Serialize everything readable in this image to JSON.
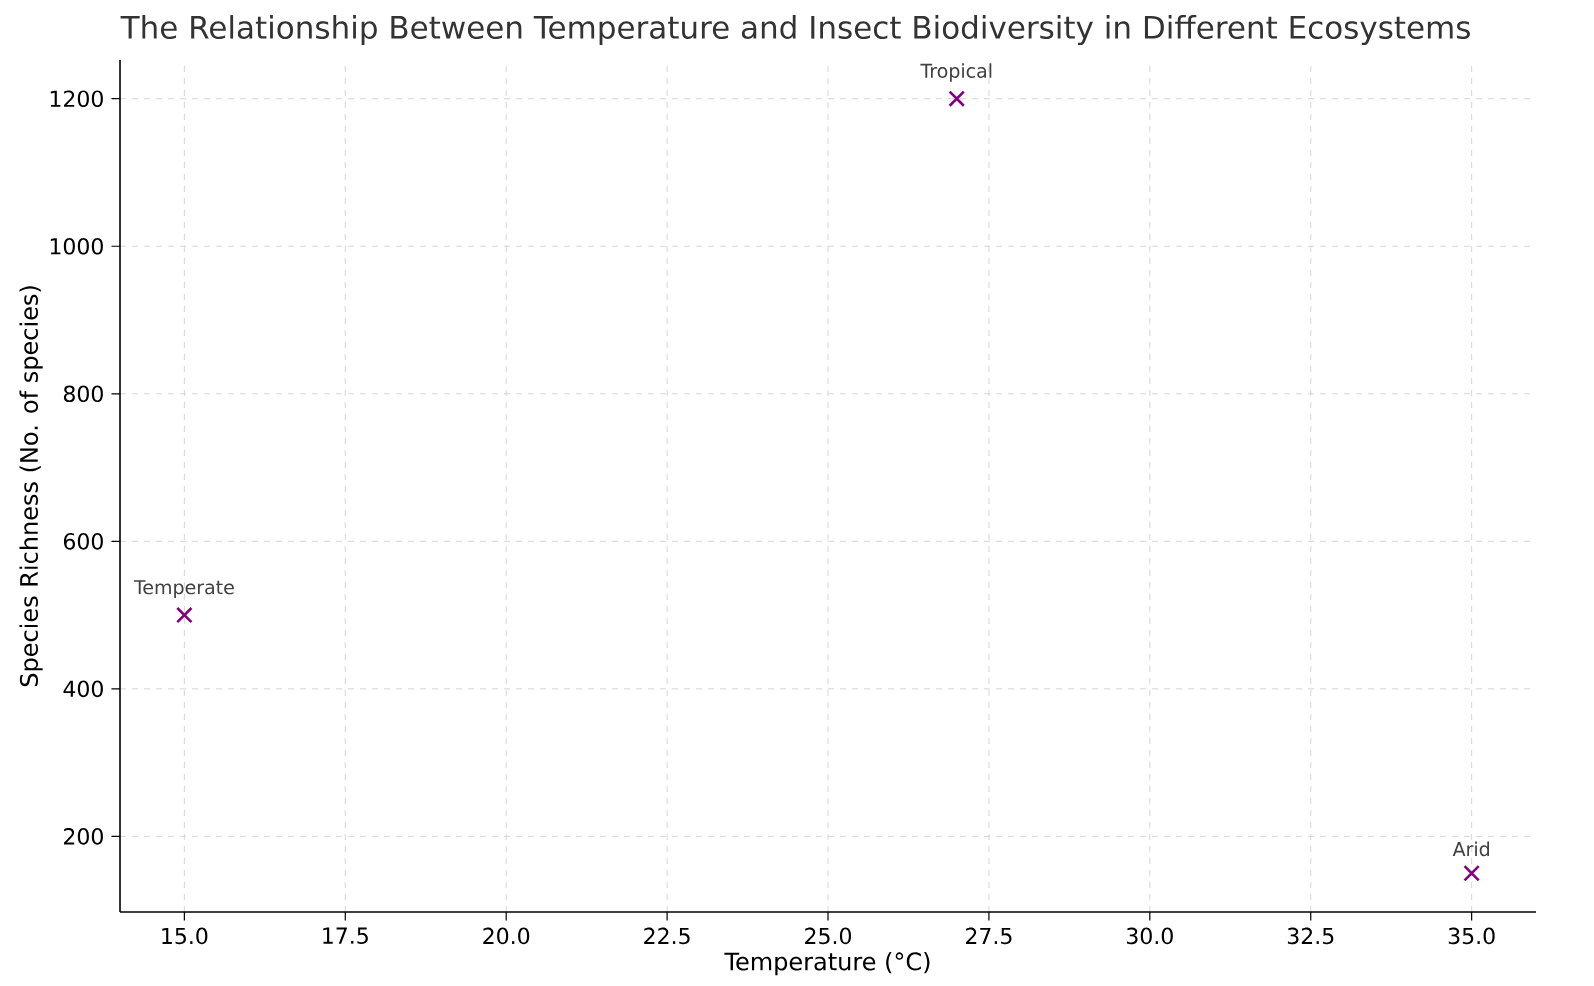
{
  "chart_data": {
    "type": "scatter",
    "title": "The Relationship Between Temperature and Insect Biodiversity in Different Ecosystems",
    "xlabel": "Temperature (°C)",
    "ylabel": "Species Richness (No. of species)",
    "x": [
      15,
      27,
      35
    ],
    "values": [
      500,
      1200,
      150
    ],
    "color": "#800080",
    "marker": "cross",
    "xlim": [
      14,
      36
    ],
    "ylim": [
      97.5,
      1252.5
    ],
    "xticks": [
      {
        "value": 15,
        "label": "15.0"
      },
      {
        "value": 17.5,
        "label": "17.5"
      },
      {
        "value": 20,
        "label": "20.0"
      },
      {
        "value": 22.5,
        "label": "22.5"
      },
      {
        "value": 25,
        "label": "25.0"
      },
      {
        "value": 27.5,
        "label": "27.5"
      },
      {
        "value": 30,
        "label": "30.0"
      },
      {
        "value": 32.5,
        "label": "32.5"
      },
      {
        "value": 35,
        "label": "35.0"
      }
    ],
    "yticks": [
      200,
      400,
      600,
      800,
      1000,
      1200
    ],
    "grid": true,
    "annotations": [
      {
        "text": "Temperate",
        "x": 15,
        "y": 500
      },
      {
        "text": "Tropical",
        "x": 27,
        "y": 1200
      },
      {
        "text": "Arid",
        "x": 35,
        "y": 150
      }
    ]
  }
}
